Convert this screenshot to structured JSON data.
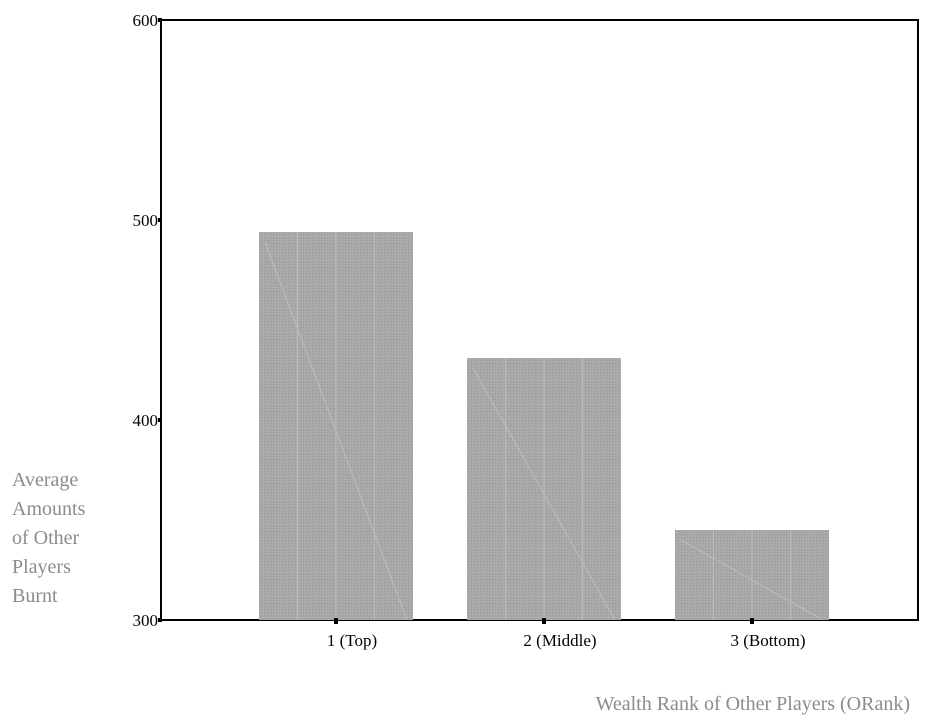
{
  "chart_data": {
    "type": "bar",
    "categories": [
      "1 (Top)",
      "2 (Middle)",
      "3 (Bottom)"
    ],
    "values": [
      494,
      431,
      345
    ],
    "ylim": [
      300,
      600
    ],
    "yticks": [
      300,
      400,
      500,
      600
    ],
    "ylabel_lines": [
      "Average",
      "Amounts",
      "of Other",
      "Players",
      "Burnt"
    ],
    "xlabel": "Wealth Rank of Other Players (ORank)",
    "grid": false,
    "bar_color": "#a6a6a6"
  }
}
